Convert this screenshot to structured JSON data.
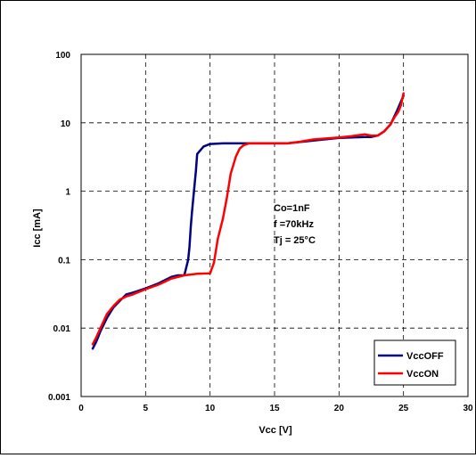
{
  "chart_data": {
    "type": "line",
    "xlabel": "Vcc [V]",
    "ylabel": "Icc [mA]",
    "xlim": [
      0,
      30
    ],
    "ylim": [
      0.001,
      100
    ],
    "yscale": "log",
    "grid": true,
    "legend_position": "bottom-right",
    "x_ticks": [
      "0",
      "5",
      "10",
      "15",
      "20",
      "25",
      "30"
    ],
    "y_ticks": [
      "0.001",
      "0.01",
      "0.1",
      "1",
      "10",
      "100"
    ],
    "annotations": [
      "Co=1nF",
      "f =70kHz",
      "Tj = 25°C"
    ],
    "series": [
      {
        "name": "VccOFF",
        "color": "#000080",
        "x": [
          0.9,
          1.2,
          1.5,
          2.0,
          2.5,
          3.0,
          3.5,
          4.0,
          5.0,
          6.0,
          7.0,
          7.5,
          8.0,
          8.1,
          8.3,
          8.4,
          8.5,
          8.6,
          8.7,
          8.9,
          9.0,
          9.5,
          10.0,
          11.0,
          13.0,
          16.0,
          18.0,
          20.0,
          22.0,
          22.5,
          23.0,
          23.5,
          24.0,
          24.5,
          25.0
        ],
        "y": [
          0.005,
          0.0065,
          0.009,
          0.014,
          0.02,
          0.025,
          0.031,
          0.033,
          0.038,
          0.045,
          0.056,
          0.059,
          0.059,
          0.07,
          0.1,
          0.15,
          0.3,
          0.5,
          0.8,
          2.0,
          3.5,
          4.5,
          4.9,
          5.0,
          5.0,
          5.0,
          5.5,
          6.0,
          6.2,
          6.2,
          6.5,
          7.5,
          9.5,
          15.0,
          25.0
        ]
      },
      {
        "name": "VccON",
        "color": "#ff0000",
        "x": [
          0.9,
          1.2,
          1.5,
          2.0,
          2.5,
          3.0,
          3.5,
          4.0,
          5.0,
          6.0,
          7.0,
          8.0,
          9.0,
          10.0,
          10.3,
          10.6,
          11.0,
          11.3,
          11.6,
          12.0,
          12.3,
          12.6,
          13.0,
          14.0,
          16.0,
          17.0,
          18.0,
          19.0,
          20.0,
          21.0,
          22.0,
          22.5,
          23.0,
          23.5,
          24.0,
          24.3,
          24.6,
          24.8,
          25.0
        ],
        "y": [
          0.0058,
          0.0075,
          0.01,
          0.016,
          0.021,
          0.026,
          0.029,
          0.031,
          0.037,
          0.043,
          0.053,
          0.059,
          0.062,
          0.063,
          0.09,
          0.2,
          0.4,
          0.8,
          1.8,
          3.2,
          4.2,
          4.7,
          5.0,
          5.0,
          5.0,
          5.3,
          5.7,
          5.9,
          6.1,
          6.4,
          6.8,
          6.5,
          6.5,
          7.5,
          9.5,
          12.0,
          14.5,
          18.0,
          27.0
        ]
      }
    ]
  }
}
